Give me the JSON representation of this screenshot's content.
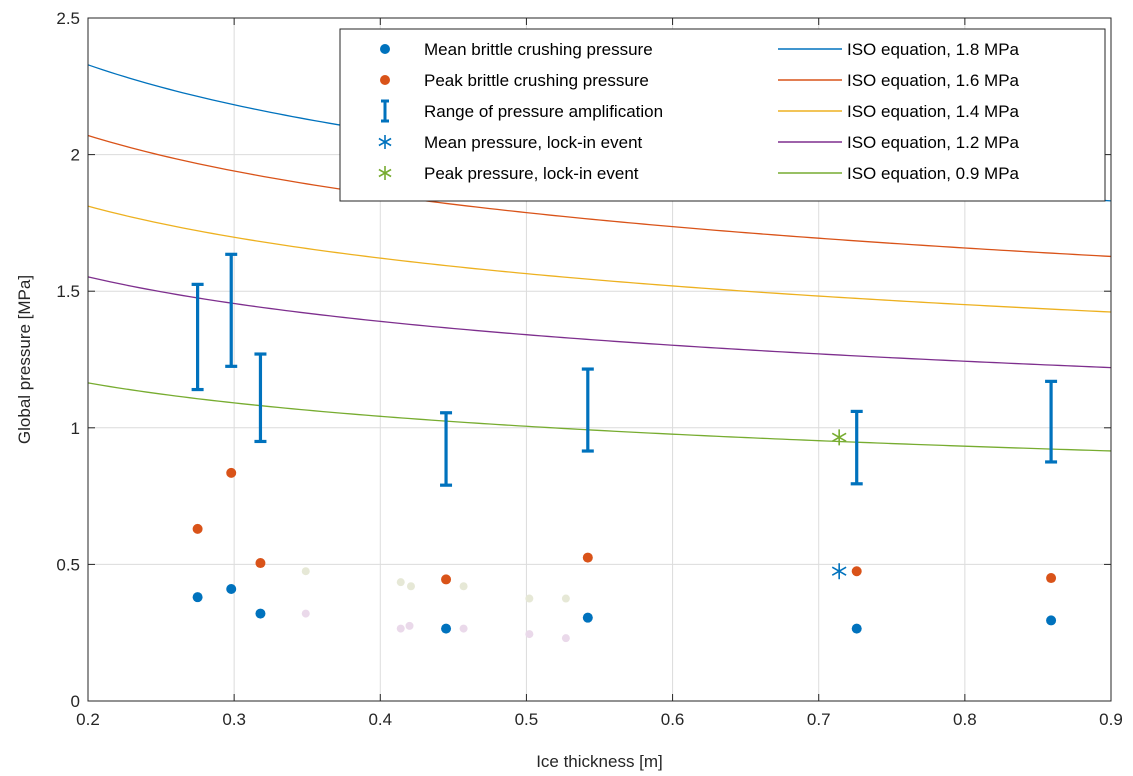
{
  "chart_data": {
    "type": "scatter",
    "xlabel": "Ice thickness [m]",
    "ylabel": "Global pressure [MPa]",
    "xlim": [
      0.2,
      0.9
    ],
    "ylim": [
      0,
      2.5
    ],
    "xticks": [
      "0.2",
      "0.3",
      "0.4",
      "0.5",
      "0.6",
      "0.7",
      "0.8",
      "0.9"
    ],
    "yticks": [
      "0",
      "0.5",
      "1",
      "1.5",
      "2",
      "2.5"
    ],
    "grid": true,
    "legend_position": "top-right",
    "series": [
      {
        "name": "Mean brittle crushing pressure",
        "kind": "dots",
        "color": "#0072BD",
        "x": [
          0.275,
          0.298,
          0.318,
          0.445,
          0.542,
          0.726,
          0.859
        ],
        "y": [
          0.38,
          0.41,
          0.32,
          0.265,
          0.305,
          0.265,
          0.295
        ]
      },
      {
        "name": "Peak brittle crushing pressure",
        "kind": "dots",
        "color": "#D95319",
        "x": [
          0.275,
          0.298,
          0.318,
          0.445,
          0.542,
          0.726,
          0.859
        ],
        "y": [
          0.63,
          0.835,
          0.505,
          0.445,
          0.525,
          0.475,
          0.45
        ]
      },
      {
        "name": "Range of pressure amplification",
        "kind": "range",
        "color": "#0072BD",
        "x": [
          0.275,
          0.298,
          0.318,
          0.445,
          0.542,
          0.726,
          0.859
        ],
        "low": [
          1.14,
          1.225,
          0.95,
          0.79,
          0.915,
          0.795,
          0.875
        ],
        "high": [
          1.525,
          1.635,
          1.27,
          1.055,
          1.215,
          1.06,
          1.17
        ]
      },
      {
        "name": "Mean pressure, lock-in event",
        "kind": "star",
        "color": "#0072BD",
        "x": [
          0.714
        ],
        "y": [
          0.475
        ]
      },
      {
        "name": "Peak pressure, lock-in event",
        "kind": "star",
        "color": "#77AC30",
        "x": [
          0.714
        ],
        "y": [
          0.965
        ]
      },
      {
        "name": "ISO equation, 1.8 MPa",
        "kind": "line",
        "color": "#0072BD",
        "cr": 1.8
      },
      {
        "name": "ISO equation, 1.6 MPa",
        "kind": "line",
        "color": "#D95319",
        "cr": 1.6
      },
      {
        "name": "ISO equation, 1.4 MPa",
        "kind": "line",
        "color": "#EDB120",
        "cr": 1.4
      },
      {
        "name": "ISO equation, 1.2 MPa",
        "kind": "line",
        "color": "#7E2F8E",
        "cr": 1.2
      },
      {
        "name": "ISO equation, 0.9 MPa",
        "kind": "line",
        "color": "#77AC30",
        "cr": 0.9
      }
    ],
    "faint_points": {
      "color_peak": "#E6E8D6",
      "color_mean": "#EAD9EA",
      "peak": {
        "x": [
          0.349,
          0.414,
          0.421,
          0.457,
          0.502,
          0.527
        ],
        "y": [
          0.475,
          0.435,
          0.42,
          0.42,
          0.375,
          0.375
        ]
      },
      "mean": {
        "x": [
          0.349,
          0.414,
          0.42,
          0.457,
          0.502,
          0.527
        ],
        "y": [
          0.32,
          0.265,
          0.275,
          0.265,
          0.245,
          0.23
        ]
      }
    }
  }
}
